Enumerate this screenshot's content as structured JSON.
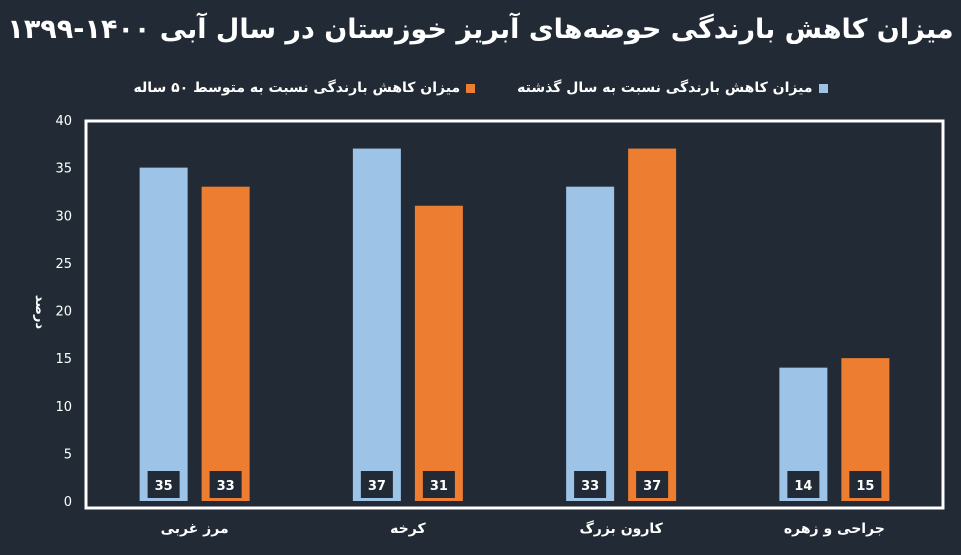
{
  "chart_data": {
    "type": "bar",
    "title": "میزان کاهش بارندگی حوضه‌های آبریز خوزستان در سال آبی ۱۴۰۰-۱۳۹۹",
    "ylabel": "درصد",
    "xlabel": "",
    "ylim": [
      0,
      40
    ],
    "yticks": [
      0,
      5,
      10,
      15,
      20,
      25,
      30,
      35,
      40
    ],
    "grid": false,
    "legend_position": "top",
    "categories": [
      "مرز غربی",
      "کرخه",
      "کارون بزرگ",
      "جراحی و زهره"
    ],
    "series": [
      {
        "name": "میزان کاهش بارندگی نسبت به سال گذشته",
        "color": "#9dc3e6",
        "values": [
          35,
          37,
          33,
          14
        ]
      },
      {
        "name": "میزان کاهش بارندگی نسبت به متوسط ۵۰ ساله",
        "color": "#ed7d31",
        "values": [
          33,
          31,
          37,
          15
        ]
      }
    ]
  }
}
